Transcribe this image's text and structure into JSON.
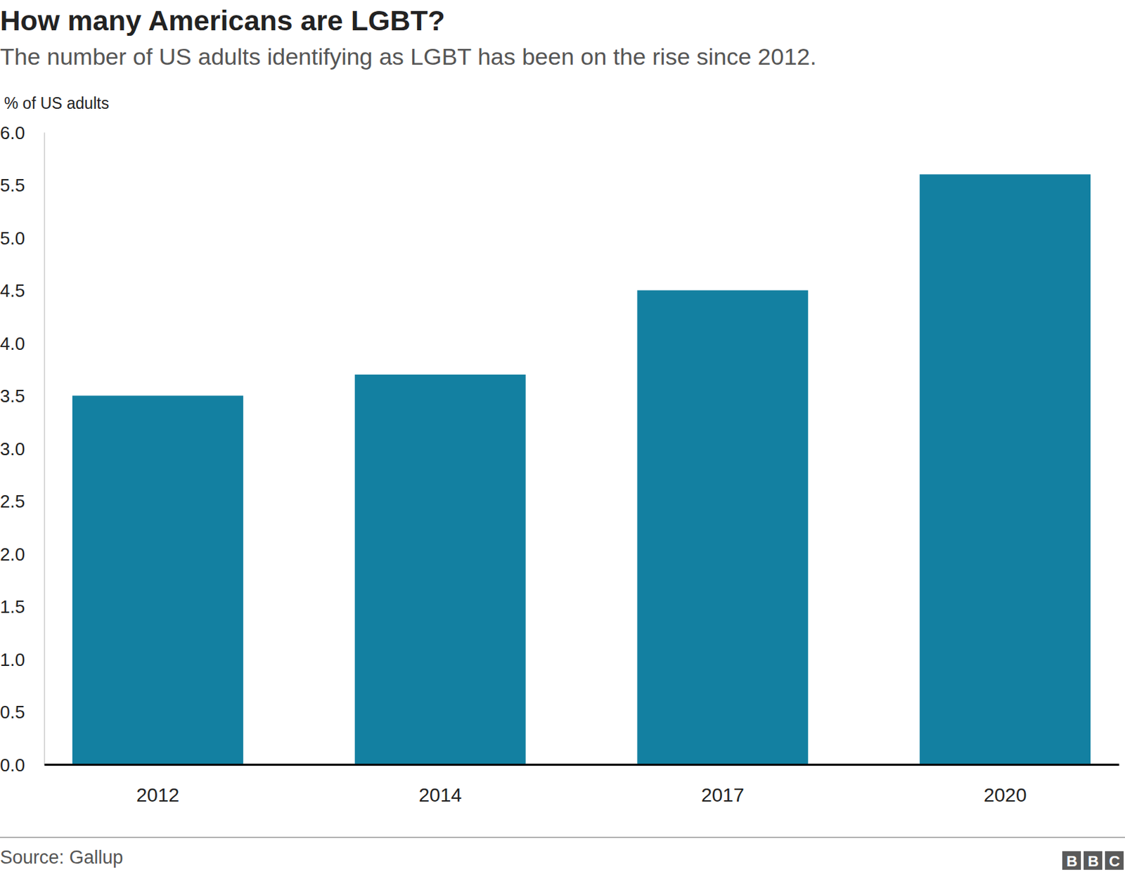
{
  "chart_data": {
    "type": "bar",
    "title": "How many Americans are LGBT?",
    "subtitle": "The number of US adults identifying as LGBT has been on the rise since 2012.",
    "y_label": "% of US adults",
    "source": "Source: Gallup",
    "logo": "BBC",
    "categories": [
      "2012",
      "2014",
      "2017",
      "2020"
    ],
    "values": [
      3.5,
      3.7,
      4.5,
      5.6
    ],
    "color": "#1380a1",
    "ylim": [
      0,
      6
    ],
    "yticks": [
      {
        "value": 0,
        "label": "0.0"
      },
      0.5,
      {
        "value": 1,
        "label": "1.0"
      },
      1.5,
      {
        "value": 2,
        "label": "2.0"
      },
      2.5,
      {
        "value": 3,
        "label": "3.0"
      },
      3.5,
      {
        "value": 4,
        "label": "4.0"
      },
      4.5,
      {
        "value": 5,
        "label": "5.0"
      },
      5.5,
      {
        "value": 6,
        "label": "6.0"
      }
    ],
    "grid": false
  }
}
